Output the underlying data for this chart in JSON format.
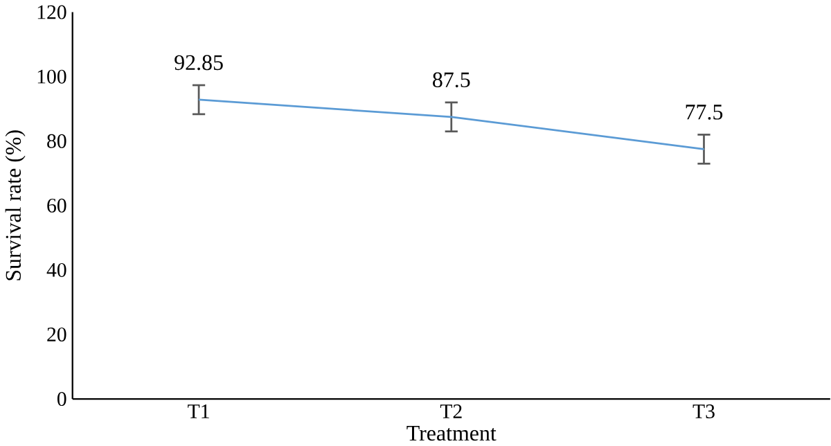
{
  "chart_data": {
    "type": "line",
    "xlabel": "Treatment",
    "ylabel": "Survival rate (%)",
    "categories": [
      "T1",
      "T2",
      "T3"
    ],
    "series": [
      {
        "color": "#5b9bd5",
        "values": [
          92.85,
          87.5,
          77.5
        ],
        "errors": [
          4.5,
          4.5,
          4.5
        ]
      }
    ],
    "ylim": [
      0,
      120
    ],
    "yticks": [
      0,
      20,
      40,
      60,
      80,
      100,
      120
    ],
    "data_labels": true,
    "grid": false,
    "marker": "none"
  }
}
